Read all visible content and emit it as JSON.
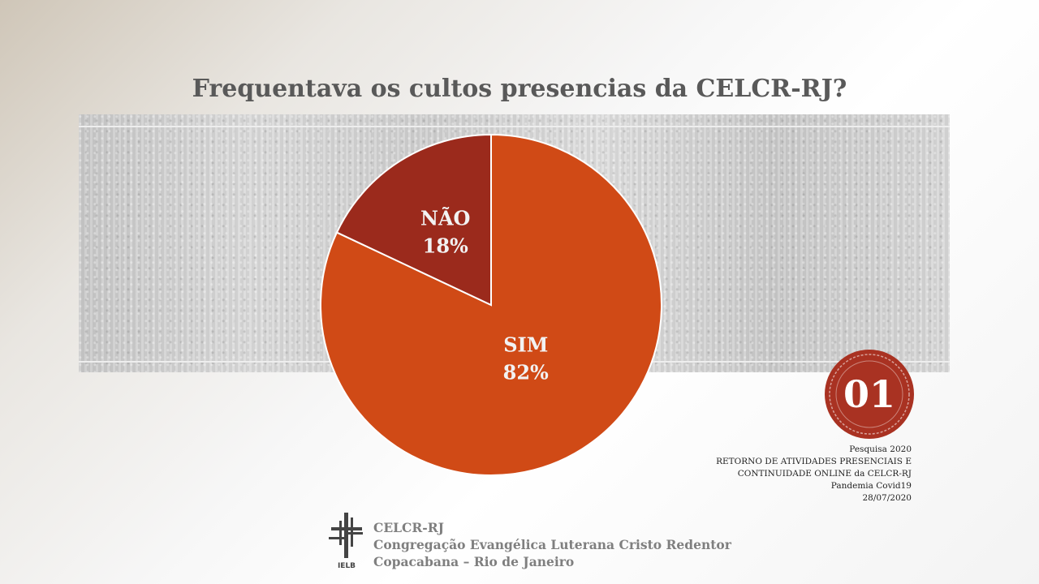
{
  "slide": {
    "title": "Frequentava os cultos presencias da CELCR-RJ?",
    "badge_number": "01",
    "footnote": [
      "Pesquisa  2020",
      "RETORNO  DE  ATIVIDADES  PRESENCIAIS  E",
      "CONTINUIDADE  ONLINE  da CELCR-RJ",
      "Pandemia  Covid19",
      "28/07/2020"
    ],
    "org": {
      "short": "CELCR-RJ",
      "name": "Congregação Evangélica Luterana Cristo Redentor",
      "location": "Copacabana – Rio de Janeiro",
      "logo_text": "IELB"
    }
  },
  "chart_data": {
    "type": "pie",
    "title": "Frequentava os cultos presencias da CELCR-RJ?",
    "slices": [
      {
        "label": "SIM",
        "value": 82,
        "display": "82%",
        "color": "#d04a16"
      },
      {
        "label": "NÃO",
        "value": 18,
        "display": "18%",
        "color": "#9b2a1c"
      }
    ]
  }
}
